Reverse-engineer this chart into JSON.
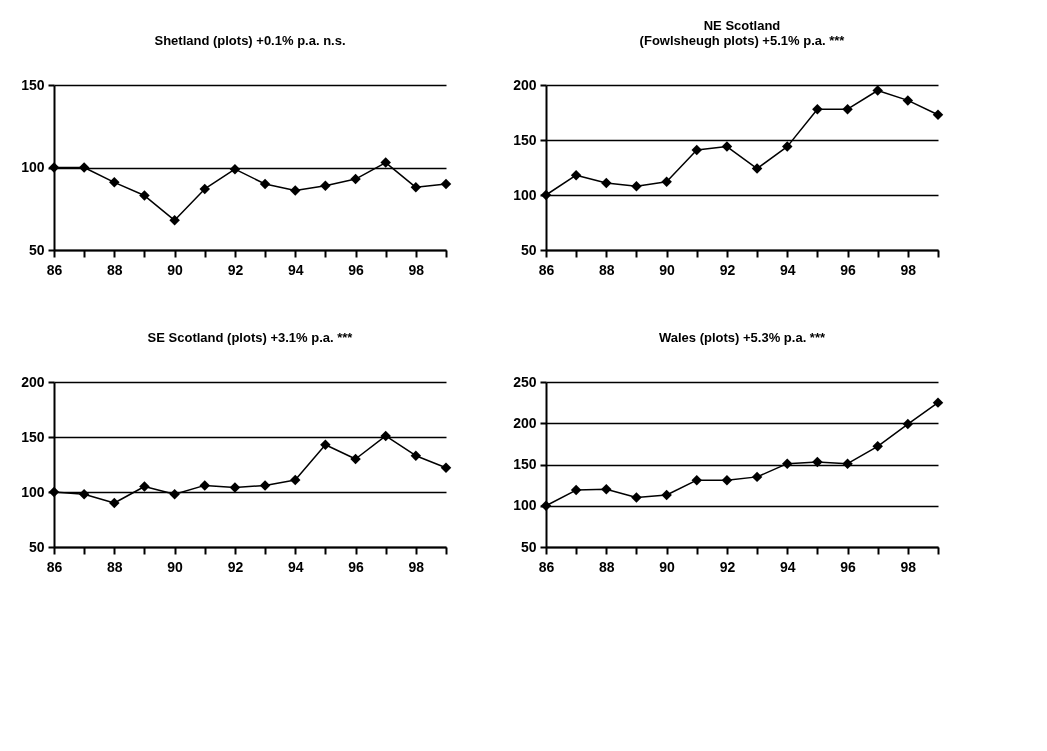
{
  "chart_data": [
    {
      "type": "line",
      "title": "Shetland (plots) +0.1% p.a. n.s.",
      "x": [
        86,
        87,
        88,
        89,
        90,
        91,
        92,
        93,
        94,
        95,
        96,
        97,
        98,
        99
      ],
      "series": [
        {
          "color": "#000000",
          "values": [
            100,
            100,
            91,
            83,
            68,
            87,
            99,
            90,
            86,
            89,
            93,
            103,
            88,
            90
          ]
        }
      ],
      "xlim": [
        86,
        99
      ],
      "xticks": [
        86,
        {
          "value": 87,
          "label": null
        },
        88,
        {
          "value": 89,
          "label": null
        },
        90,
        {
          "value": 91,
          "label": null
        },
        92,
        {
          "value": 93,
          "label": null
        },
        94,
        {
          "value": 95,
          "label": null
        },
        96,
        {
          "value": 97,
          "label": null
        },
        98,
        {
          "value": 99,
          "label": null
        }
      ],
      "ylim": [
        50,
        150
      ],
      "yticks": [
        50,
        100,
        150
      ],
      "grid": "y",
      "marker": "diamond"
    },
    {
      "type": "line",
      "title": "NE Scotland\n(Fowlsheugh plots) +5.1% p.a. ***",
      "x": [
        86,
        87,
        88,
        89,
        90,
        91,
        92,
        93,
        94,
        95,
        96,
        97,
        98,
        99
      ],
      "series": [
        {
          "color": "#000000",
          "values": [
            100,
            118,
            111,
            108,
            112,
            141,
            144,
            124,
            144,
            178,
            178,
            195,
            186,
            173
          ]
        }
      ],
      "xlim": [
        86,
        99
      ],
      "xticks": [
        86,
        {
          "value": 87,
          "label": null
        },
        88,
        {
          "value": 89,
          "label": null
        },
        90,
        {
          "value": 91,
          "label": null
        },
        92,
        {
          "value": 93,
          "label": null
        },
        94,
        {
          "value": 95,
          "label": null
        },
        96,
        {
          "value": 97,
          "label": null
        },
        98,
        {
          "value": 99,
          "label": null
        }
      ],
      "ylim": [
        50,
        200
      ],
      "yticks": [
        50,
        100,
        150,
        200
      ],
      "grid": "y",
      "marker": "diamond"
    },
    {
      "type": "line",
      "title": "SE Scotland (plots) +3.1% p.a. ***",
      "x": [
        86,
        87,
        88,
        89,
        90,
        91,
        92,
        93,
        94,
        95,
        96,
        97,
        98,
        99
      ],
      "series": [
        {
          "color": "#000000",
          "values": [
            100,
            98,
            90,
            105,
            98,
            106,
            104,
            106,
            111,
            143,
            130,
            151,
            133,
            122
          ]
        }
      ],
      "xlim": [
        86,
        99
      ],
      "xticks": [
        86,
        {
          "value": 87,
          "label": null
        },
        88,
        {
          "value": 89,
          "label": null
        },
        90,
        {
          "value": 91,
          "label": null
        },
        92,
        {
          "value": 93,
          "label": null
        },
        94,
        {
          "value": 95,
          "label": null
        },
        96,
        {
          "value": 97,
          "label": null
        },
        98,
        {
          "value": 99,
          "label": null
        }
      ],
      "ylim": [
        50,
        200
      ],
      "yticks": [
        50,
        100,
        150,
        200
      ],
      "grid": "y",
      "marker": "diamond"
    },
    {
      "type": "line",
      "title": "Wales (plots) +5.3% p.a. ***",
      "x": [
        86,
        87,
        88,
        89,
        90,
        91,
        92,
        93,
        94,
        95,
        96,
        97,
        98,
        99
      ],
      "series": [
        {
          "color": "#000000",
          "values": [
            100,
            119,
            120,
            110,
            113,
            131,
            131,
            135,
            151,
            153,
            151,
            172,
            199,
            225
          ]
        }
      ],
      "xlim": [
        86,
        99
      ],
      "xticks": [
        86,
        {
          "value": 87,
          "label": null
        },
        88,
        {
          "value": 89,
          "label": null
        },
        90,
        {
          "value": 91,
          "label": null
        },
        92,
        {
          "value": 93,
          "label": null
        },
        94,
        {
          "value": 95,
          "label": null
        },
        96,
        {
          "value": 97,
          "label": null
        },
        98,
        {
          "value": 99,
          "label": null
        }
      ],
      "ylim": [
        50,
        250
      ],
      "yticks": [
        50,
        100,
        150,
        200,
        250
      ],
      "grid": "y",
      "marker": "diamond"
    }
  ]
}
